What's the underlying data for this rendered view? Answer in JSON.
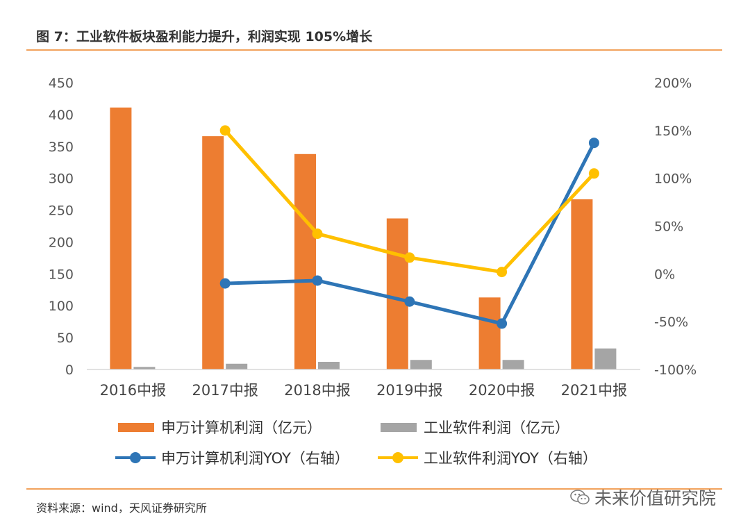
{
  "figure": {
    "title": "图 7：工业软件板块盈利能力提升，利润实现 105%增长",
    "source": "资料来源：wind，天风证券研究所",
    "watermark": "未来价值研究院"
  },
  "colors": {
    "orange_bar": "#ed7d31",
    "gray_bar": "#a5a5a5",
    "blue_line": "#2e75b6",
    "yellow_line": "#ffc000",
    "rule": "#f2a25c"
  },
  "chart_data": {
    "type": "bar",
    "title": "",
    "categories": [
      "2016中报",
      "2017中报",
      "2018中报",
      "2019中报",
      "2020中报",
      "2021中报"
    ],
    "left_axis": {
      "ylim": [
        0,
        450
      ],
      "ticks": [
        "0",
        "50",
        "100",
        "150",
        "200",
        "250",
        "300",
        "350",
        "400",
        "450"
      ]
    },
    "right_axis": {
      "ylim": [
        -100,
        200
      ],
      "ticks": [
        "-100%",
        "-50%",
        "0%",
        "50%",
        "100%",
        "150%",
        "200%"
      ]
    },
    "series": [
      {
        "name": "申万计算机利润（亿元）",
        "type": "bar",
        "axis": "left",
        "values": [
          411,
          366,
          338,
          237,
          113,
          267
        ]
      },
      {
        "name": "工业软件利润（亿元）",
        "type": "bar",
        "axis": "left",
        "values": [
          4,
          9,
          12,
          15,
          15,
          33
        ]
      },
      {
        "name": "申万计算机利润YOY（右轴）",
        "type": "line",
        "axis": "right",
        "values": [
          null,
          -10,
          -7,
          -29,
          -52,
          137
        ]
      },
      {
        "name": "工业软件利润YOY（右轴）",
        "type": "line",
        "axis": "right",
        "values": [
          null,
          150,
          42,
          17,
          2,
          105
        ]
      }
    ]
  }
}
